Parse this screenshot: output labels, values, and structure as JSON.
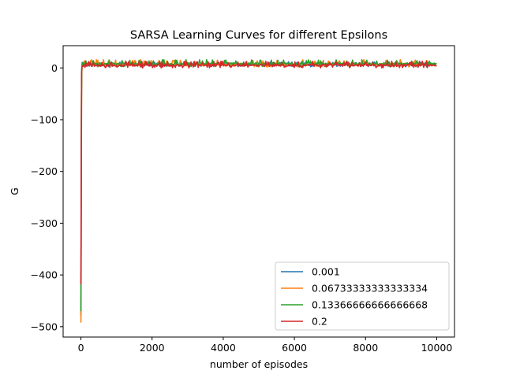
{
  "chart_data": {
    "type": "line",
    "title": "SARSA Learning Curves for different Epsilons",
    "xlabel": "number of episodes",
    "ylabel": "G",
    "xlim": [
      -500,
      10500
    ],
    "ylim": [
      -520,
      43
    ],
    "xticks": [
      0,
      2000,
      4000,
      6000,
      8000,
      10000
    ],
    "xtick_labels": [
      "0",
      "2000",
      "4000",
      "6000",
      "8000",
      "10000"
    ],
    "yticks": [
      0,
      -100,
      -200,
      -300,
      -400,
      -500
    ],
    "ytick_labels": [
      "0",
      "−100",
      "−200",
      "−300",
      "−400",
      "−500"
    ],
    "grid": false,
    "legend_position": "lower-right",
    "episodes": 10000,
    "series": [
      {
        "name": "0.001",
        "color": "#1f77b4",
        "initial_values": [
          -478,
          -360,
          -210,
          -90,
          -30,
          -6,
          0
        ],
        "plateau_mean": 7,
        "plateau_range": [
          2,
          12
        ]
      },
      {
        "name": "0.06733333333333334",
        "color": "#ff7f0e",
        "initial_values": [
          -492,
          -415,
          -300,
          -150,
          -40,
          -8,
          0
        ],
        "plateau_mean": 7,
        "plateau_range": [
          2,
          16
        ]
      },
      {
        "name": "0.13366666666666668",
        "color": "#2ca02c",
        "initial_values": [
          -470,
          -330,
          -180,
          -60,
          -15,
          0,
          2
        ],
        "plateau_mean": 8,
        "plateau_range": [
          2,
          16
        ]
      },
      {
        "name": "0.2",
        "color": "#d62728",
        "initial_values": [
          -418,
          -300,
          -160,
          -60,
          -10,
          0,
          1
        ],
        "plateau_mean": 5,
        "plateau_range": [
          0,
          13
        ]
      }
    ]
  }
}
